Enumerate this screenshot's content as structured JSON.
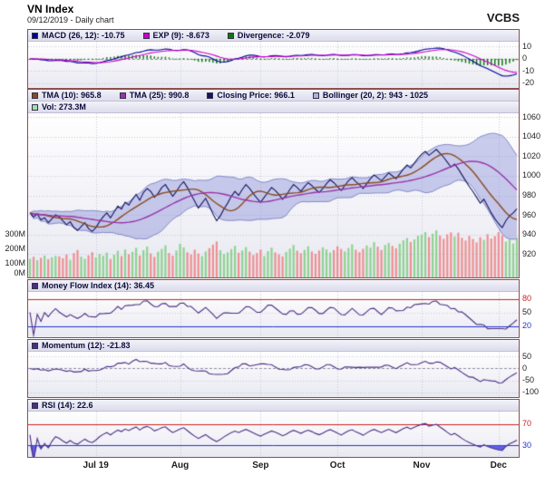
{
  "header": {
    "title": "VN Index",
    "subtitle": "09/12/2019 - Daily chart",
    "brand": "VCBS"
  },
  "colors": {
    "macd": "#000099",
    "exp": "#cc00cc",
    "divergence": "#117711",
    "close": "#151560",
    "tma10": "#8a4a20",
    "tma25": "#9933aa",
    "bollinger_fill": "rgba(140,146,214,0.45)",
    "bollinger_edge": "rgba(110,116,190,0.8)",
    "vol_up": "rgba(120,205,120,0.8)",
    "vol_down": "rgba(238,128,128,0.85)",
    "oscillator": "#4b2e83",
    "overbought": "#cc2222",
    "oversold": "#2233cc",
    "rsi_fill_high": "rgba(220,45,45,0.85)",
    "rsi_fill_low": "rgba(70,70,230,0.85)",
    "tick": "#222222"
  },
  "legends": {
    "macd": [
      {
        "id": "macd",
        "swatch": "#000099",
        "label": "MACD (26, 12): -10.75"
      },
      {
        "id": "exp",
        "swatch": "#cc00cc",
        "label": "EXP (9): -8.673"
      },
      {
        "id": "divergence",
        "swatch": "#117711",
        "label": "Divergence: -2.079"
      }
    ],
    "price_row1": [
      {
        "id": "tma10",
        "swatch": "#8a4a20",
        "label": "TMA (10): 965.8"
      },
      {
        "id": "tma25",
        "swatch": "#9933aa",
        "label": "TMA (25): 990.8"
      },
      {
        "id": "closing-price",
        "swatch": "#151560",
        "label": "Closing Price: 966.1"
      },
      {
        "id": "bollinger",
        "swatch": "#aab0e0",
        "label": "Bollinger (20, 2): 943 - 1025"
      }
    ],
    "price_row2": [
      {
        "id": "volume",
        "swatch": "#a8dca8",
        "label": "Vol: 273.3M"
      }
    ],
    "mfi": [
      {
        "id": "mfi",
        "swatch": "#4b2e83",
        "label": "Money Flow Index (14): 36.45"
      }
    ],
    "momentum": [
      {
        "id": "momentum",
        "swatch": "#4b2e83",
        "label": "Momentum (12): -21.83"
      }
    ],
    "rsi": [
      {
        "id": "rsi",
        "swatch": "#4b2e83",
        "label": "RSI (14): 22.6"
      }
    ]
  },
  "chart_data": {
    "type": "line",
    "layout": "multi-panel-financial",
    "title": "VN Index - Daily chart - 09/12/2019",
    "x_axis": {
      "tick_indices": [
        18,
        41,
        63,
        84,
        107,
        128
      ],
      "tick_labels": [
        "Jul 19",
        "Aug",
        "Sep",
        "Oct",
        "Nov",
        "Dec"
      ]
    },
    "series": {
      "close": [
        962,
        958,
        961,
        955,
        957,
        952,
        956,
        960,
        958,
        954,
        950,
        953,
        947,
        944,
        948,
        952,
        946,
        943,
        947,
        953,
        958,
        962,
        957,
        963,
        969,
        966,
        973,
        970,
        976,
        981,
        975,
        983,
        987,
        984,
        978,
        982,
        988,
        991,
        985,
        979,
        984,
        990,
        994,
        988,
        981,
        974,
        967,
        972,
        977,
        969,
        961,
        954,
        959,
        966,
        972,
        979,
        984,
        980,
        986,
        991,
        987,
        982,
        977,
        973,
        978,
        983,
        988,
        985,
        981,
        976,
        980,
        986,
        991,
        988,
        984,
        989,
        993,
        990,
        986,
        983,
        987,
        992,
        996,
        993,
        989,
        985,
        990,
        995,
        998,
        994,
        991,
        987,
        992,
        997,
        1001,
        998,
        995,
        999,
        1003,
        1000,
        997,
        1002,
        1007,
        1011,
        1008,
        1013,
        1018,
        1022,
        1025,
        1021,
        1024,
        1027,
        1023,
        1019,
        1014,
        1009,
        1012,
        1007,
        1001,
        995,
        989,
        984,
        978,
        972,
        976,
        969,
        962,
        956,
        951,
        947,
        954,
        959,
        962,
        966.1
      ],
      "volume_millions": [
        128,
        142,
        119,
        135,
        151,
        126,
        139,
        148,
        145,
        132,
        158,
        121,
        167,
        189,
        143,
        128,
        152,
        174,
        138,
        162,
        149,
        171,
        127,
        156,
        183,
        147,
        192,
        160,
        176,
        204,
        151,
        188,
        213,
        165,
        142,
        177,
        196,
        221,
        168,
        149,
        185,
        232,
        207,
        173,
        158,
        191,
        164,
        146,
        179,
        202,
        226,
        248,
        187,
        161,
        173,
        195,
        218,
        170,
        186,
        209,
        177,
        154,
        168,
        192,
        147,
        181,
        205,
        172,
        159,
        144,
        176,
        198,
        223,
        184,
        167,
        190,
        214,
        178,
        162,
        185,
        207,
        193,
        171,
        188,
        215,
        196,
        179,
        203,
        228,
        191,
        174,
        197,
        220,
        206,
        243,
        212,
        189,
        224,
        238,
        217,
        201,
        232,
        256,
        271,
        244,
        262,
        287,
        295,
        312,
        278,
        301,
        324,
        289,
        266,
        297,
        310,
        282,
        308,
        273,
        254,
        286,
        265,
        241,
        277,
        259,
        298,
        268,
        285,
        312,
        289,
        247,
        261,
        234,
        273.3
      ]
    },
    "derived_indicators": {
      "macd": {
        "fast": 12,
        "slow": 26,
        "signal": 9,
        "last_macd": -10.75,
        "last_exp": -8.673,
        "last_divergence": -2.079
      },
      "tma10": {
        "period": 10,
        "last": 965.8
      },
      "tma25": {
        "period": 25,
        "last": 990.8
      },
      "bollinger": {
        "period": 20,
        "stdev": 2,
        "last_range": "943 - 1025"
      },
      "money_flow_index": {
        "period": 14,
        "last": 36.45
      },
      "momentum": {
        "period": 12,
        "last": -21.83
      },
      "rsi": {
        "period": 14,
        "last": 22.6,
        "overbought": 70,
        "oversold": 30
      },
      "last_close": 966.1,
      "last_volume": "273.3M"
    },
    "panels": {
      "macd": {
        "ylim": [
          -24,
          14
        ],
        "yticks": [
          {
            "v": 10
          },
          {
            "v": 0
          },
          {
            "v": -10
          },
          {
            "v": -20
          }
        ]
      },
      "price": {
        "ylim": [
          896,
          1064
        ],
        "yticks": [
          {
            "v": 1060
          },
          {
            "v": 1040
          },
          {
            "v": 1020
          },
          {
            "v": 1000
          },
          {
            "v": 980
          },
          {
            "v": 960
          },
          {
            "v": 940
          },
          {
            "v": 920
          }
        ],
        "vol_ticks": [
          {
            "v": 300,
            "label": "300M"
          },
          {
            "v": 200,
            "label": "200M"
          },
          {
            "v": 100,
            "label": "100M"
          },
          {
            "v": 0,
            "label": "0M"
          }
        ]
      },
      "mfi": {
        "ylim": [
          -5,
          95
        ],
        "yticks": [
          {
            "v": 80,
            "c": "over"
          },
          {
            "v": 50
          },
          {
            "v": 20,
            "c": "under"
          }
        ]
      },
      "momentum": {
        "ylim": [
          -120,
          70
        ],
        "yticks": [
          {
            "v": 50
          },
          {
            "v": 0
          },
          {
            "v": -50
          },
          {
            "v": -100
          }
        ]
      },
      "rsi": {
        "ylim": [
          8,
          94
        ],
        "yticks": [
          {
            "v": 70,
            "c": "over"
          },
          {
            "v": 30,
            "c": "under"
          }
        ]
      }
    }
  }
}
